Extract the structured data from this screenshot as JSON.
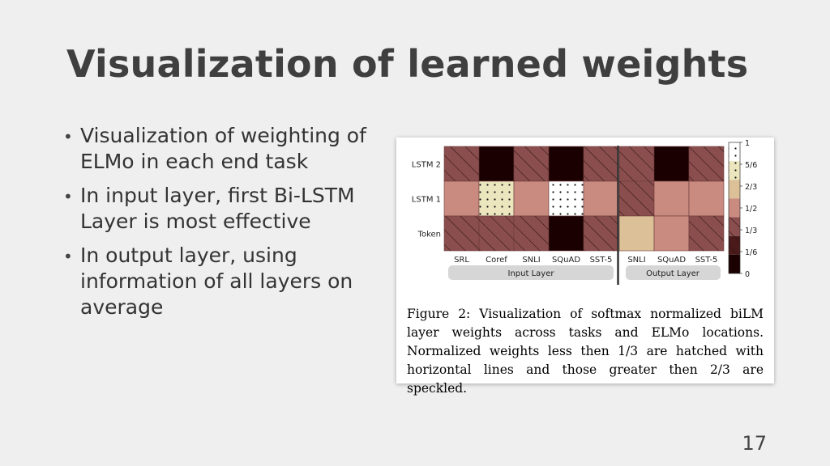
{
  "slide": {
    "title": "Visualization of learned weights",
    "bullets": [
      "Visualization of weighting of ELMo in each end task",
      "In input layer, first Bi-LSTM Layer is most effective",
      "In output layer, using information of all layers on average"
    ],
    "page_number": "17"
  },
  "figure": {
    "caption": "Figure 2: Visualization of softmax normalized biLM layer weights across tasks and ELMo locations. Normalized weights less then 1/3 are hatched with horizontal lines and those greater then 2/3 are speckled.",
    "rows": [
      "LSTM 2",
      "LSTM 1",
      "Token"
    ],
    "input_layer_label": "Input Layer",
    "output_layer_label": "Output Layer",
    "input_tasks": [
      "SRL",
      "Coref",
      "SNLI",
      "SQuAD",
      "SST-5"
    ],
    "output_tasks": [
      "SNLI",
      "SQuAD",
      "SST-5"
    ],
    "colorbar_labels": [
      "1",
      "5/6",
      "2/3",
      "1/2",
      "1/3",
      "1/6",
      "0"
    ],
    "cells": {
      "input": [
        [
          {
            "fill": "#8b4e4e",
            "pattern": "hatch"
          },
          {
            "fill": "#1a0000",
            "pattern": "none"
          },
          {
            "fill": "#8b4e4e",
            "pattern": "hatch"
          },
          {
            "fill": "#1a0000",
            "pattern": "none"
          },
          {
            "fill": "#8b4e4e",
            "pattern": "hatch"
          }
        ],
        [
          {
            "fill": "#c98a80",
            "pattern": "none"
          },
          {
            "fill": "#ece6bf",
            "pattern": "dots"
          },
          {
            "fill": "#c98a80",
            "pattern": "none"
          },
          {
            "fill": "#ffffff",
            "pattern": "dots"
          },
          {
            "fill": "#c98a80",
            "pattern": "none"
          }
        ],
        [
          {
            "fill": "#8b4e4e",
            "pattern": "hatch"
          },
          {
            "fill": "#8b4e4e",
            "pattern": "hatch"
          },
          {
            "fill": "#8b4e4e",
            "pattern": "hatch"
          },
          {
            "fill": "#1a0000",
            "pattern": "none"
          },
          {
            "fill": "#8b4e4e",
            "pattern": "hatch"
          }
        ]
      ],
      "output": [
        [
          {
            "fill": "#8b4e4e",
            "pattern": "hatch"
          },
          {
            "fill": "#1a0000",
            "pattern": "none"
          },
          {
            "fill": "#8b4e4e",
            "pattern": "hatch"
          }
        ],
        [
          {
            "fill": "#8b4e4e",
            "pattern": "hatch"
          },
          {
            "fill": "#c98a80",
            "pattern": "none"
          },
          {
            "fill": "#c98a80",
            "pattern": "none"
          }
        ],
        [
          {
            "fill": "#dcc097",
            "pattern": "none"
          },
          {
            "fill": "#c98a80",
            "pattern": "none"
          },
          {
            "fill": "#8b4e4e",
            "pattern": "hatch"
          }
        ]
      ]
    }
  },
  "colors": {
    "background": "#efefef",
    "title": "#3f3f3f",
    "colorbar": [
      "#ffffff",
      "#ece6bf",
      "#dcc097",
      "#c98a80",
      "#8b4e4e",
      "#4a1a1a",
      "#1a0000"
    ]
  }
}
